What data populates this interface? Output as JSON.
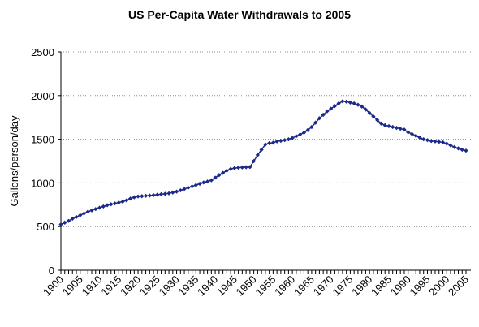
{
  "chart_data": {
    "type": "line",
    "title": "US Per-Capita Water Withdrawals to 2005",
    "xlabel": "",
    "ylabel": "Gallons/person/day",
    "xlim": [
      1900,
      2005
    ],
    "ylim": [
      0,
      2500
    ],
    "yticks": [
      0,
      500,
      1000,
      1500,
      2000,
      2500
    ],
    "xticks": [
      1900,
      1905,
      1910,
      1915,
      1920,
      1925,
      1930,
      1935,
      1940,
      1945,
      1950,
      1955,
      1960,
      1965,
      1970,
      1975,
      1980,
      1985,
      1990,
      1995,
      2000,
      2005
    ],
    "grid": "horizontal",
    "legend": "none",
    "marker": "diamond",
    "color": "#1b2a8a",
    "series": [
      {
        "x": [
          1900,
          1901,
          1902,
          1903,
          1904,
          1905,
          1906,
          1907,
          1908,
          1909,
          1910,
          1911,
          1912,
          1913,
          1914,
          1915,
          1916,
          1917,
          1918,
          1919,
          1920,
          1921,
          1922,
          1923,
          1924,
          1925,
          1926,
          1927,
          1928,
          1929,
          1930,
          1931,
          1932,
          1933,
          1934,
          1935,
          1936,
          1937,
          1938,
          1939,
          1940,
          1941,
          1942,
          1943,
          1944,
          1945,
          1946,
          1947,
          1948,
          1949,
          1950,
          1951,
          1952,
          1953,
          1954,
          1955,
          1956,
          1957,
          1958,
          1959,
          1960,
          1961,
          1962,
          1963,
          1964,
          1965,
          1966,
          1967,
          1968,
          1969,
          1970,
          1971,
          1972,
          1973,
          1974,
          1975,
          1976,
          1977,
          1978,
          1979,
          1980,
          1981,
          1982,
          1983,
          1984,
          1985,
          1986,
          1987,
          1988,
          1989,
          1990,
          1991,
          1992,
          1993,
          1994,
          1995,
          1996,
          1997,
          1998,
          1999,
          2000,
          2001,
          2002,
          2003,
          2004,
          2005
        ],
        "y": [
          525,
          545,
          565,
          590,
          610,
          630,
          650,
          670,
          685,
          700,
          715,
          730,
          745,
          755,
          765,
          775,
          785,
          800,
          820,
          835,
          845,
          848,
          852,
          855,
          860,
          865,
          870,
          875,
          880,
          890,
          900,
          915,
          930,
          945,
          960,
          975,
          990,
          1005,
          1015,
          1030,
          1060,
          1090,
          1115,
          1140,
          1160,
          1170,
          1175,
          1178,
          1180,
          1182,
          1250,
          1320,
          1380,
          1440,
          1455,
          1460,
          1475,
          1482,
          1490,
          1500,
          1515,
          1535,
          1555,
          1575,
          1605,
          1640,
          1690,
          1740,
          1780,
          1820,
          1850,
          1880,
          1910,
          1935,
          1930,
          1920,
          1910,
          1895,
          1875,
          1840,
          1800,
          1760,
          1720,
          1680,
          1660,
          1650,
          1640,
          1630,
          1620,
          1610,
          1580,
          1560,
          1540,
          1520,
          1500,
          1490,
          1480,
          1475,
          1470,
          1465,
          1450,
          1430,
          1410,
          1395,
          1380,
          1370
        ]
      }
    ]
  }
}
